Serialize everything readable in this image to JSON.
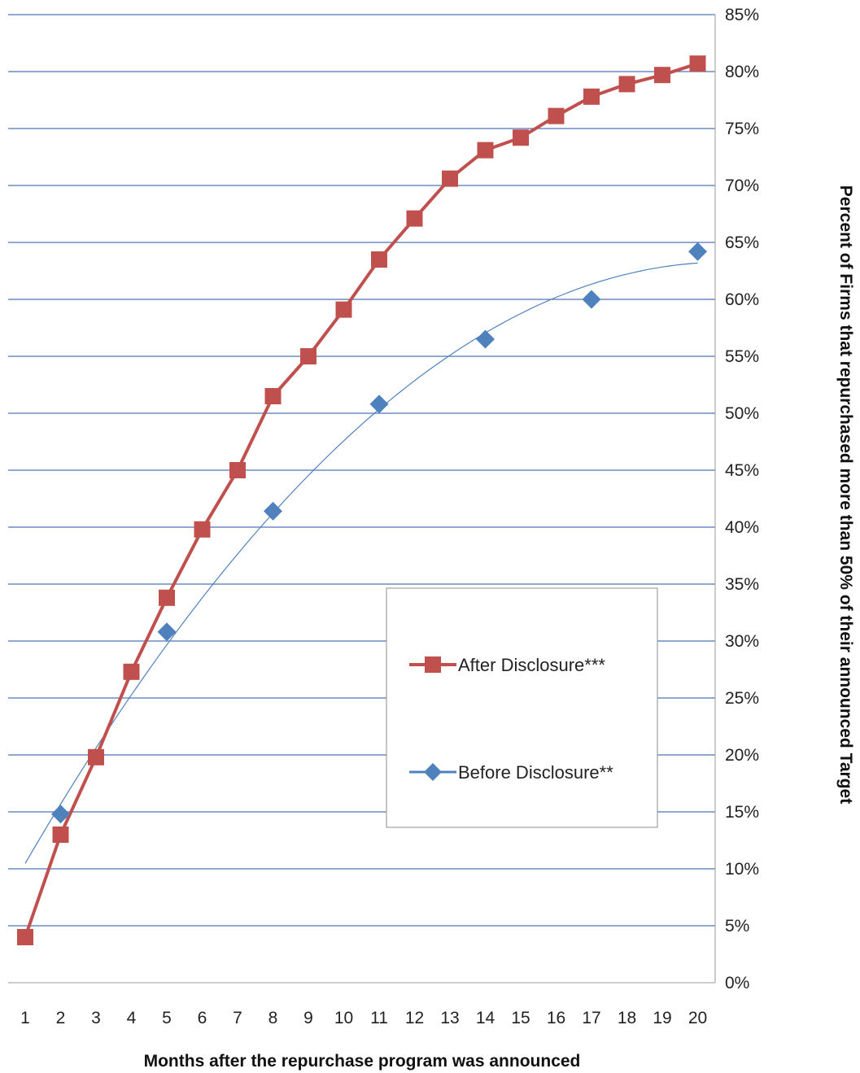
{
  "chart_data": {
    "type": "line",
    "title": "",
    "xlabel": "Months after the repurchase program was announced",
    "ylabel": "Percent of Firms that repurchased more than 50% of their announced Target",
    "x": [
      1,
      2,
      3,
      4,
      5,
      6,
      7,
      8,
      9,
      10,
      11,
      12,
      13,
      14,
      15,
      16,
      17,
      18,
      19,
      20
    ],
    "y_ticks": [
      "0%",
      "5%",
      "10%",
      "15%",
      "20%",
      "25%",
      "30%",
      "35%",
      "40%",
      "45%",
      "50%",
      "55%",
      "60%",
      "65%",
      "70%",
      "75%",
      "80%",
      "85%"
    ],
    "ylim": [
      0,
      85
    ],
    "y_axis_side": "right",
    "grid": "horizontal",
    "legend_position": "center-right",
    "series": [
      {
        "name": "After Disclosure***",
        "color": "#c0504d",
        "marker": "square",
        "x": [
          1,
          2,
          3,
          4,
          5,
          6,
          7,
          8,
          9,
          10,
          11,
          12,
          13,
          14,
          15,
          16,
          17,
          18,
          19,
          20
        ],
        "values": [
          4.0,
          13.0,
          19.8,
          27.3,
          33.8,
          39.8,
          45.0,
          51.5,
          55.0,
          59.1,
          63.5,
          67.1,
          70.6,
          73.1,
          74.2,
          76.1,
          77.8,
          78.9,
          79.7,
          80.7
        ]
      },
      {
        "name": "Before Disclosure**",
        "color": "#4f81bd",
        "marker": "diamond",
        "x": [
          2,
          5,
          8,
          11,
          14,
          17,
          20
        ],
        "values": [
          14.8,
          30.8,
          41.4,
          50.8,
          56.5,
          60.0,
          64.2
        ],
        "trendline": true
      }
    ]
  }
}
